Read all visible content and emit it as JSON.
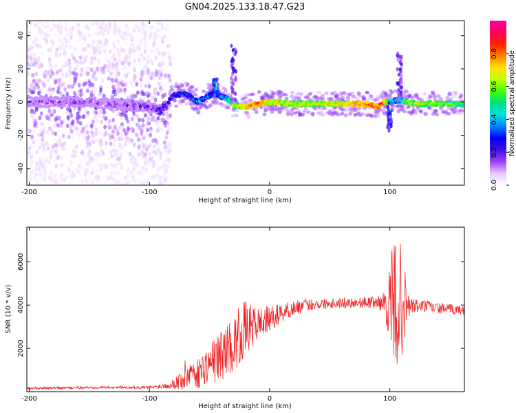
{
  "title": "GN04.2025.133.18.47.G23",
  "chart_data": [
    {
      "type": "heatmap",
      "name": "spectrogram",
      "xlabel": "Height of straight line (km)",
      "ylabel": "Frequency (Hz)",
      "xlim": [
        -202,
        162
      ],
      "ylim": [
        -50,
        49
      ],
      "xticks": [
        -200,
        -100,
        0,
        100
      ],
      "yticks": [
        -40,
        -20,
        0,
        20,
        40
      ],
      "colorbar": {
        "label": "Normalized spectral amplitude",
        "range": [
          0,
          1
        ],
        "ticks": [
          0.0,
          0.2,
          0.4,
          0.6,
          0.8
        ],
        "colormap": [
          "#ffffff",
          "#e8c8ff",
          "#a040ff",
          "#4010e0",
          "#0000ff",
          "#0080ff",
          "#00e0e0",
          "#00e080",
          "#40ff00",
          "#c0ff00",
          "#ffe000",
          "#ff8000",
          "#ff2000",
          "#ff0060",
          "#ff00a0"
        ]
      },
      "ridge": {
        "description": "dominant frequency track (Hz) vs height (km)",
        "x": [
          -200,
          -150,
          -100,
          -90,
          -80,
          -70,
          -60,
          -50,
          -45,
          -40,
          -35,
          -30,
          -20,
          -10,
          0,
          20,
          40,
          60,
          80,
          90,
          95,
          100,
          105,
          110,
          120,
          140,
          162
        ],
        "y": [
          0,
          0,
          -3,
          -5,
          4,
          5,
          0,
          4,
          6,
          3,
          2,
          -2,
          -3,
          -1,
          0,
          -1,
          -1,
          -1,
          -1,
          -3,
          0,
          0,
          1,
          1,
          -1,
          -1,
          -1
        ],
        "peak_amplitude": [
          0.2,
          0.2,
          0.25,
          0.3,
          0.35,
          0.4,
          0.45,
          0.45,
          0.4,
          0.45,
          0.55,
          0.75,
          0.85,
          0.9,
          0.8,
          0.75,
          0.75,
          0.8,
          0.9,
          0.95,
          0.9,
          0.6,
          0.55,
          0.6,
          0.75,
          0.7,
          0.65
        ]
      }
    },
    {
      "type": "line",
      "name": "snr",
      "xlabel": "Height of straight line (km)",
      "ylabel": "SNR (10 * v/v)",
      "xlim": [
        -202,
        162
      ],
      "ylim": [
        0,
        7600
      ],
      "xticks": [
        -200,
        -100,
        0,
        100
      ],
      "yticks": [
        2000,
        4000,
        6000
      ],
      "color": "#ee2222",
      "x": [
        -202,
        -180,
        -160,
        -140,
        -120,
        -100,
        -90,
        -80,
        -75,
        -70,
        -65,
        -60,
        -55,
        -50,
        -45,
        -40,
        -35,
        -30,
        -25,
        -20,
        -15,
        -10,
        -5,
        0,
        10,
        20,
        30,
        40,
        50,
        60,
        70,
        80,
        90,
        95,
        100,
        103,
        105,
        107,
        110,
        113,
        115,
        120,
        130,
        140,
        150,
        162
      ],
      "y": [
        150,
        170,
        180,
        200,
        200,
        190,
        260,
        350,
        500,
        700,
        1000,
        800,
        1100,
        1300,
        1500,
        1700,
        2000,
        2200,
        2600,
        2900,
        3000,
        3150,
        3250,
        3350,
        3650,
        3850,
        4000,
        4050,
        4100,
        4100,
        4120,
        4120,
        4120,
        4100,
        4050,
        4000,
        4050,
        4200,
        4100,
        4000,
        3950,
        3950,
        3950,
        3850,
        3800,
        3750
      ],
      "noise_amplitude": [
        70,
        60,
        60,
        60,
        60,
        70,
        120,
        220,
        500,
        800,
        600,
        700,
        800,
        900,
        1100,
        1200,
        1200,
        1300,
        1400,
        1300,
        1000,
        800,
        700,
        600,
        450,
        350,
        300,
        250,
        250,
        250,
        250,
        250,
        300,
        500,
        1800,
        3000,
        3300,
        3000,
        2500,
        1500,
        600,
        350,
        300,
        250,
        250,
        200
      ]
    }
  ]
}
